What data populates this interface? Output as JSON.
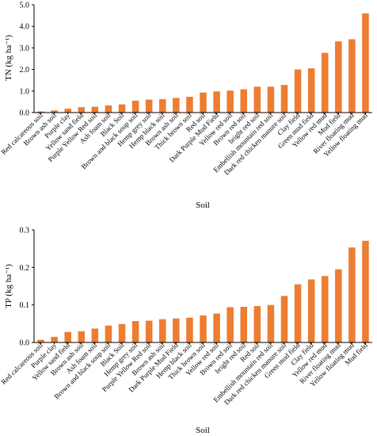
{
  "figure": {
    "background": "#ffffff",
    "bar_color": "#ED7D31"
  },
  "chart_data": [
    {
      "type": "bar",
      "categories": [
        "Red calcareous soil",
        "Brown ash soil",
        "Purple clay",
        "Yellow sand field",
        "Purple Yellow Red soil",
        "Ash foam soil",
        "Black Soil",
        "Brown and black soup soil",
        "Hemp grey soil",
        "Hemp black soil",
        "Brown ash soil",
        "Thick brown soil",
        "Red soil",
        "Dark Purple Mud Field",
        "Yellow red soil",
        "Brown red soil",
        "bright red soil",
        "Embellish mountain red soil",
        "Dark red chicken manure soil",
        "Clay field",
        "Green mud field",
        "Yellow red mud",
        "Mud field",
        "River floating mud",
        "Yellow floating mud"
      ],
      "values": [
        0.05,
        0.1,
        0.18,
        0.25,
        0.27,
        0.33,
        0.38,
        0.55,
        0.6,
        0.62,
        0.68,
        0.73,
        0.93,
        0.98,
        1.02,
        1.08,
        1.2,
        1.2,
        1.28,
        2.0,
        2.05,
        2.77,
        3.3,
        3.4,
        4.6
      ],
      "xlabel": "Soil",
      "ylabel": "TN (kg ha⁻¹)",
      "ylim": [
        0,
        5
      ],
      "yticks": [
        "0.0",
        "1.0",
        "2.0",
        "3.0",
        "4.0",
        "5.0"
      ],
      "grid": false,
      "legend": "none"
    },
    {
      "type": "bar",
      "categories": [
        "Red calcareous soil",
        "Purple clay",
        "Yellow sand field",
        "Brown ash soil",
        "Ash foam soil",
        "Brown and black soup soil",
        "Black Soil",
        "Hemp grey soil",
        "Purple Yellow Red soil",
        "Brown ash soil",
        "Dark Purple Mud Field",
        "Hemp black soil",
        "Thick brown soil",
        "Yellow red soil",
        "Brown red soil",
        "bright red soil",
        "Red soil",
        "Embellish mountain red soil",
        "Dark red chicken manure soil",
        "Green mud field",
        "Clay field",
        "Yellow red mud",
        "River floating mud",
        "Yellow floating mud",
        "Mud field"
      ],
      "values": [
        0.007,
        0.015,
        0.028,
        0.03,
        0.037,
        0.045,
        0.049,
        0.057,
        0.058,
        0.062,
        0.064,
        0.066,
        0.072,
        0.077,
        0.094,
        0.095,
        0.097,
        0.1,
        0.124,
        0.155,
        0.168,
        0.177,
        0.195,
        0.253,
        0.271
      ],
      "xlabel": "Soil",
      "ylabel": "TP (kg ha⁻¹)",
      "ylim": [
        0,
        0.3
      ],
      "yticks": [
        "0.0",
        "0.1",
        "0.2",
        "0.3"
      ],
      "grid": false,
      "legend": "none"
    }
  ]
}
